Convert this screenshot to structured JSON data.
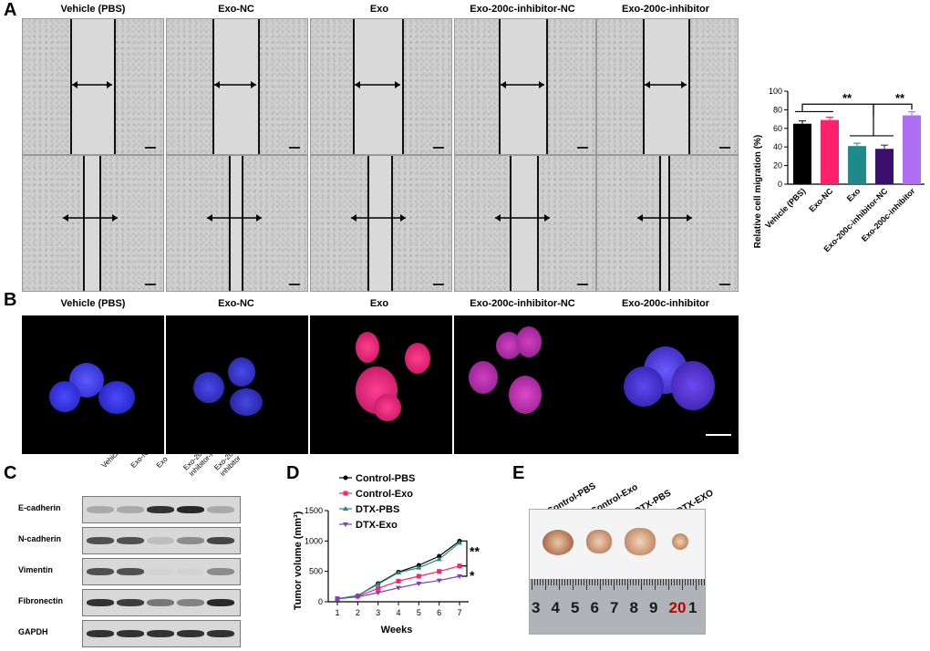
{
  "panels": {
    "a": "A",
    "b": "B",
    "c": "C",
    "d": "D",
    "e": "E"
  },
  "groups": [
    "Vehicle (PBS)",
    "Exo-NC",
    "Exo",
    "Exo-200c-inhibitor-NC",
    "Exo-200c-inhibitor"
  ],
  "wb": {
    "columns": [
      "Vehicle (PBS)",
      "Exo-NC",
      "Exo",
      "Exo-200c-\ninhibitor-NC",
      "Exo-200c-\ninhibitor"
    ],
    "rows": [
      "E-cadherin",
      "N-cadherin",
      "Vimentin",
      "Fibronectin",
      "GAPDH"
    ],
    "intensity": [
      [
        0.25,
        0.25,
        0.85,
        0.9,
        0.25
      ],
      [
        0.7,
        0.7,
        0.15,
        0.4,
        0.75
      ],
      [
        0.7,
        0.7,
        0.05,
        0.05,
        0.4
      ],
      [
        0.85,
        0.8,
        0.5,
        0.45,
        0.9
      ],
      [
        0.85,
        0.85,
        0.85,
        0.85,
        0.85
      ]
    ]
  },
  "tumor_labels": [
    "Control-PBS",
    "Control-Exo",
    "DTX-PBS",
    "DTX-EXO"
  ],
  "ruler_numbers": [
    "3",
    "4",
    "5",
    "6",
    "7",
    "8",
    "9",
    "20",
    "1"
  ],
  "chart_data": [
    {
      "type": "bar",
      "categories": [
        "Vehicle (PBS)",
        "Exo-NC",
        "Exo",
        "Exo-200c-inhibitor-NC",
        "Exo-200c-inhibitor"
      ],
      "values": [
        65,
        69,
        41,
        38,
        74
      ],
      "errors": [
        3,
        3,
        3,
        4,
        4
      ],
      "colors": [
        "#000000",
        "#ff1f6b",
        "#1f8a8a",
        "#3b0f6e",
        "#b06ef5"
      ],
      "ylabel": "Relative cell migration (%)",
      "ylim": [
        0,
        100
      ],
      "yticks": [
        0,
        20,
        40,
        60,
        80,
        100
      ],
      "annotations": [
        "**",
        "**"
      ]
    },
    {
      "type": "line",
      "x": [
        1,
        2,
        3,
        4,
        5,
        6,
        7
      ],
      "xlabel": "Weeks",
      "ylabel": "Tumor volume (mm³)",
      "ylim": [
        0,
        1500
      ],
      "yticks": [
        0,
        500,
        1000,
        1500
      ],
      "series": [
        {
          "name": "Control-PBS",
          "color": "#000000",
          "marker": "circle",
          "values": [
            50,
            100,
            300,
            490,
            600,
            750,
            1000
          ]
        },
        {
          "name": "Control-Exo",
          "color": "#ff1f6b",
          "marker": "square",
          "values": [
            50,
            90,
            220,
            340,
            420,
            500,
            590
          ]
        },
        {
          "name": "DTX-PBS",
          "color": "#1f8a8a",
          "marker": "triangle",
          "values": [
            50,
            100,
            290,
            480,
            560,
            700,
            970
          ]
        },
        {
          "name": "DTX-Exo",
          "color": "#7b3fcf",
          "marker": "triangle-down",
          "values": [
            50,
            80,
            150,
            230,
            300,
            350,
            420
          ]
        }
      ],
      "annotations": [
        "**",
        "*"
      ]
    }
  ]
}
